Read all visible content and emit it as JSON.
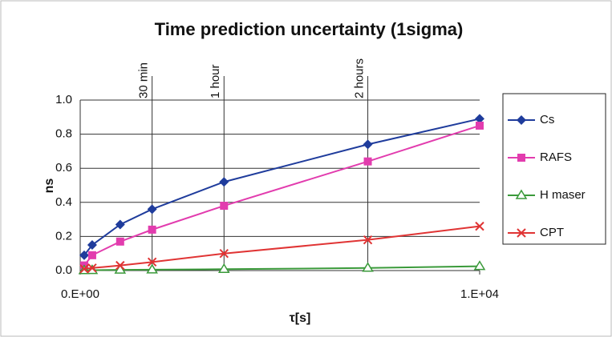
{
  "chart_data": {
    "type": "line",
    "title": "Time prediction uncertainty (1sigma)",
    "x_label": "τ[s]",
    "y_label": "ns",
    "x": [
      100,
      300,
      1000,
      1800,
      3600,
      7200,
      10000
    ],
    "series": [
      {
        "name": "Cs",
        "color": "#1f3c9c",
        "marker": "diamond",
        "values": [
          0.09,
          0.15,
          0.27,
          0.36,
          0.52,
          0.74,
          0.89
        ]
      },
      {
        "name": "RAFS",
        "color": "#e23cae",
        "marker": "square",
        "values": [
          0.03,
          0.09,
          0.17,
          0.24,
          0.38,
          0.64,
          0.85
        ]
      },
      {
        "name": "H maser",
        "color": "#3a9a3a",
        "marker": "triangle",
        "values": [
          0.001,
          0.002,
          0.004,
          0.005,
          0.008,
          0.015,
          0.025
        ]
      },
      {
        "name": "CPT",
        "color": "#e03434",
        "marker": "x",
        "values": [
          0.01,
          0.015,
          0.03,
          0.05,
          0.1,
          0.18,
          0.26
        ]
      }
    ],
    "xlim": [
      0,
      10000
    ],
    "xticks": [
      {
        "value": 0,
        "label": "0.E+00"
      },
      {
        "value": 10000,
        "label": "1.E+04"
      }
    ],
    "ylim": [
      0,
      1
    ],
    "yticks": [
      {
        "value": 0,
        "label": "0.0"
      },
      {
        "value": 0.2,
        "label": "0.2"
      },
      {
        "value": 0.4,
        "label": "0.4"
      },
      {
        "value": 0.6,
        "label": "0.6"
      },
      {
        "value": 0.8,
        "label": "0.8"
      },
      {
        "value": 1,
        "label": "1.0"
      }
    ],
    "grid": true,
    "legend": "right",
    "annotations": [
      {
        "label": "30 min",
        "x": 1800
      },
      {
        "label": "1 hour",
        "x": 3600
      },
      {
        "label": "2 hours",
        "x": 7200
      }
    ]
  }
}
